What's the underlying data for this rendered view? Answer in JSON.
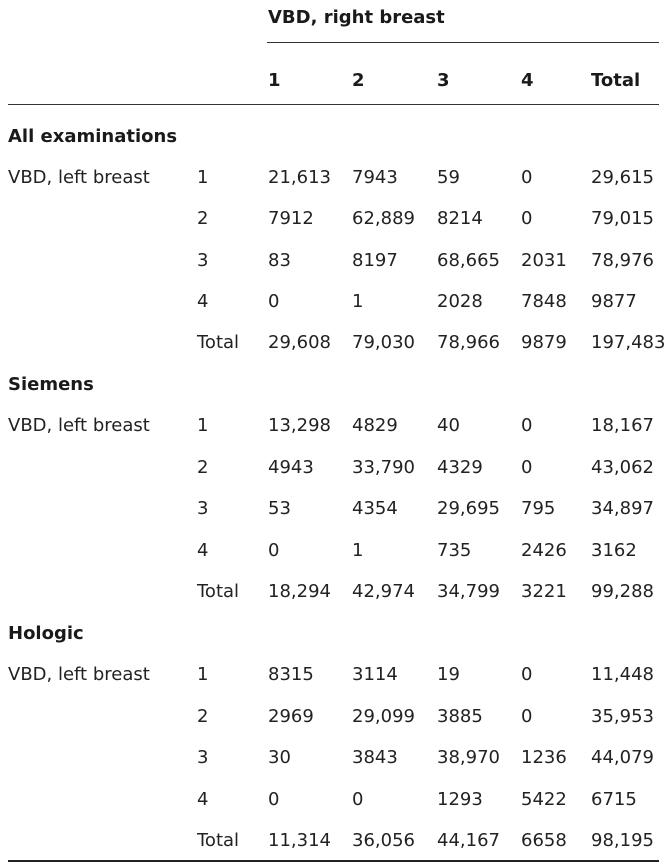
{
  "header": {
    "span_title": "VBD, right breast",
    "columns": [
      "1",
      "2",
      "3",
      "4",
      "Total"
    ]
  },
  "sections": [
    {
      "title": "All examinations",
      "row_group_label": "VBD, left breast",
      "rows": [
        {
          "label": "1",
          "values": [
            "21,613",
            "7943",
            "59",
            "0",
            "29,615"
          ]
        },
        {
          "label": "2",
          "values": [
            "7912",
            "62,889",
            "8214",
            "0",
            "79,015"
          ]
        },
        {
          "label": "3",
          "values": [
            "83",
            "8197",
            "68,665",
            "2031",
            "78,976"
          ]
        },
        {
          "label": "4",
          "values": [
            "0",
            "1",
            "2028",
            "7848",
            "9877"
          ]
        },
        {
          "label": "Total",
          "values": [
            "29,608",
            "79,030",
            "78,966",
            "9879",
            "197,483"
          ]
        }
      ]
    },
    {
      "title": "Siemens",
      "row_group_label": "VBD, left breast",
      "rows": [
        {
          "label": "1",
          "values": [
            "13,298",
            "4829",
            "40",
            "0",
            "18,167"
          ]
        },
        {
          "label": "2",
          "values": [
            "4943",
            "33,790",
            "4329",
            "0",
            "43,062"
          ]
        },
        {
          "label": "3",
          "values": [
            "53",
            "4354",
            "29,695",
            "795",
            "34,897"
          ]
        },
        {
          "label": "4",
          "values": [
            "0",
            "1",
            "735",
            "2426",
            "3162"
          ]
        },
        {
          "label": "Total",
          "values": [
            "18,294",
            "42,974",
            "34,799",
            "3221",
            "99,288"
          ]
        }
      ]
    },
    {
      "title": "Hologic",
      "row_group_label": "VBD, left breast",
      "rows": [
        {
          "label": "1",
          "values": [
            "8315",
            "3114",
            "19",
            "0",
            "11,448"
          ]
        },
        {
          "label": "2",
          "values": [
            "2969",
            "29,099",
            "3885",
            "0",
            "35,953"
          ]
        },
        {
          "label": "3",
          "values": [
            "30",
            "3843",
            "38,970",
            "1236",
            "44,079"
          ]
        },
        {
          "label": "4",
          "values": [
            "0",
            "0",
            "1293",
            "5422",
            "6715"
          ]
        },
        {
          "label": "Total",
          "values": [
            "11,314",
            "36,056",
            "44,167",
            "6658",
            "98,195"
          ]
        }
      ]
    }
  ]
}
